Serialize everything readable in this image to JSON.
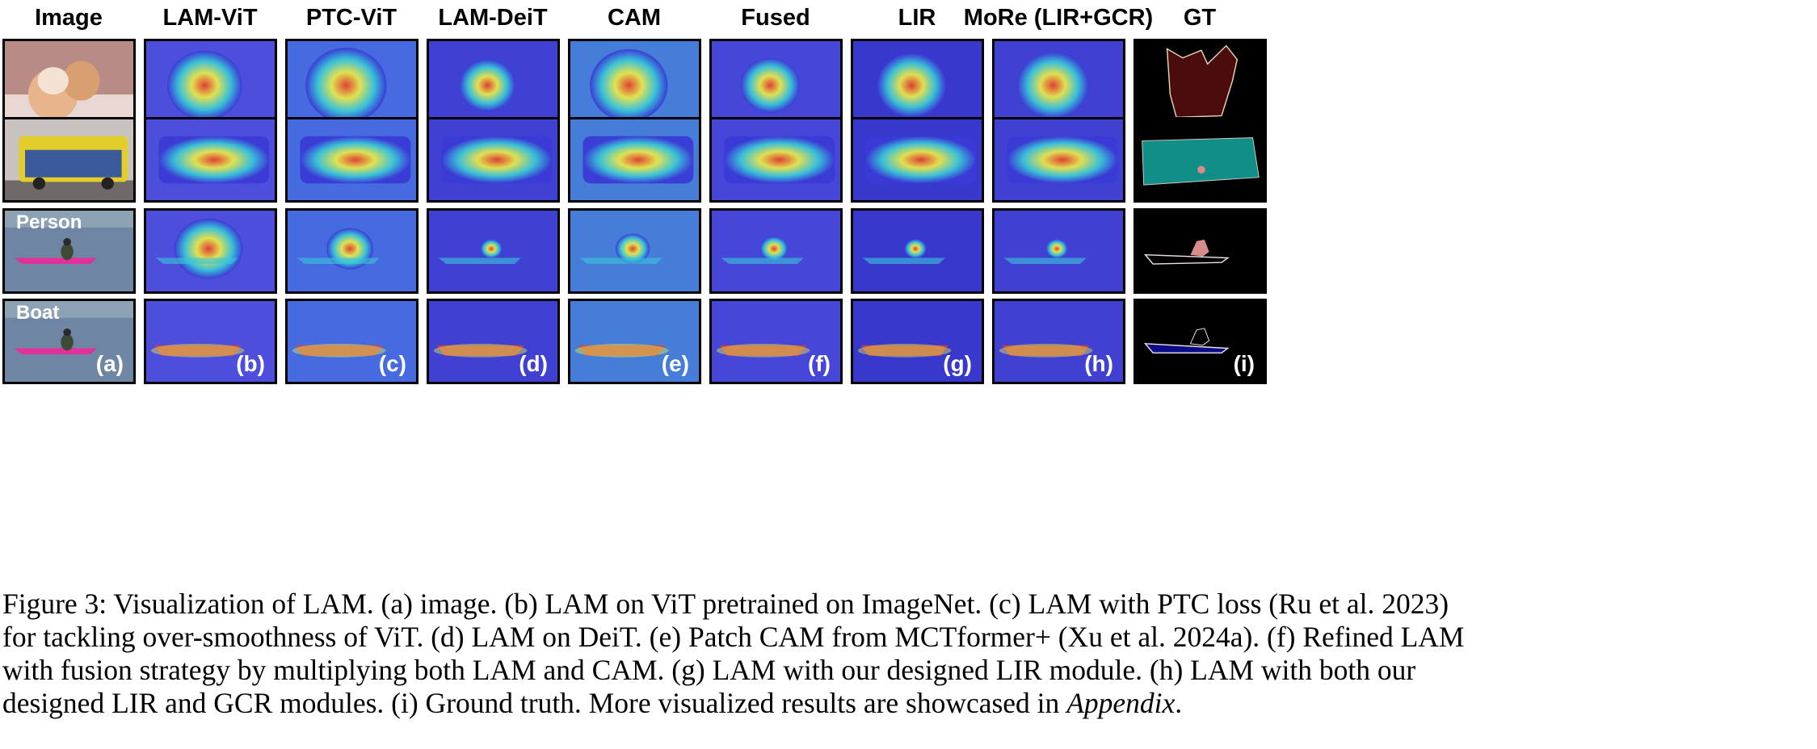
{
  "figure": {
    "columns": [
      {
        "key": "image",
        "label": "Image",
        "letter": "(a)"
      },
      {
        "key": "lam_vit",
        "label": "LAM-ViT",
        "letter": "(b)"
      },
      {
        "key": "ptc_vit",
        "label": "PTC-ViT",
        "letter": "(c)"
      },
      {
        "key": "lam_deit",
        "label": "LAM-DeiT",
        "letter": "(d)"
      },
      {
        "key": "cam",
        "label": "CAM",
        "letter": "(e)"
      },
      {
        "key": "fused",
        "label": "Fused",
        "letter": "(f)"
      },
      {
        "key": "lir",
        "label": "LIR",
        "letter": "(g)"
      },
      {
        "key": "more",
        "label": "MoRe (LIR+GCR)",
        "letter": "(h)"
      },
      {
        "key": "gt",
        "label": "GT",
        "letter": "(i)"
      }
    ],
    "row_tags": [
      "",
      "",
      "Person",
      "Boat"
    ],
    "colors": {
      "heat_blue": "#3a3ad6",
      "heat_cyan": "#39c6d8",
      "heat_yellow": "#e8e84a",
      "heat_red": "#e8402a",
      "gt_cat": "#4a0c0c",
      "gt_bus": "#0f8f86",
      "gt_person": "#d98a8a",
      "gt_boat": "#0b0b8a"
    }
  },
  "caption": {
    "lines": [
      "Figure 3: Visualization of LAM. (a) image. (b) LAM on ViT pretrained on ImageNet. (c) LAM with PTC loss (Ru et al. 2023)",
      "for tackling over-smoothness of ViT. (d) LAM on DeiT. (e) Patch CAM from MCTformer+ (Xu et al. 2024a). (f) Refined LAM",
      "with fusion strategy by multiplying both LAM and CAM. (g) LAM with our designed LIR module. (h) LAM with both our",
      "designed LIR and GCR modules. (i) Ground truth. More visualized results are showcased in"
    ],
    "last_italic": "Appendix",
    "last_tail": "."
  }
}
